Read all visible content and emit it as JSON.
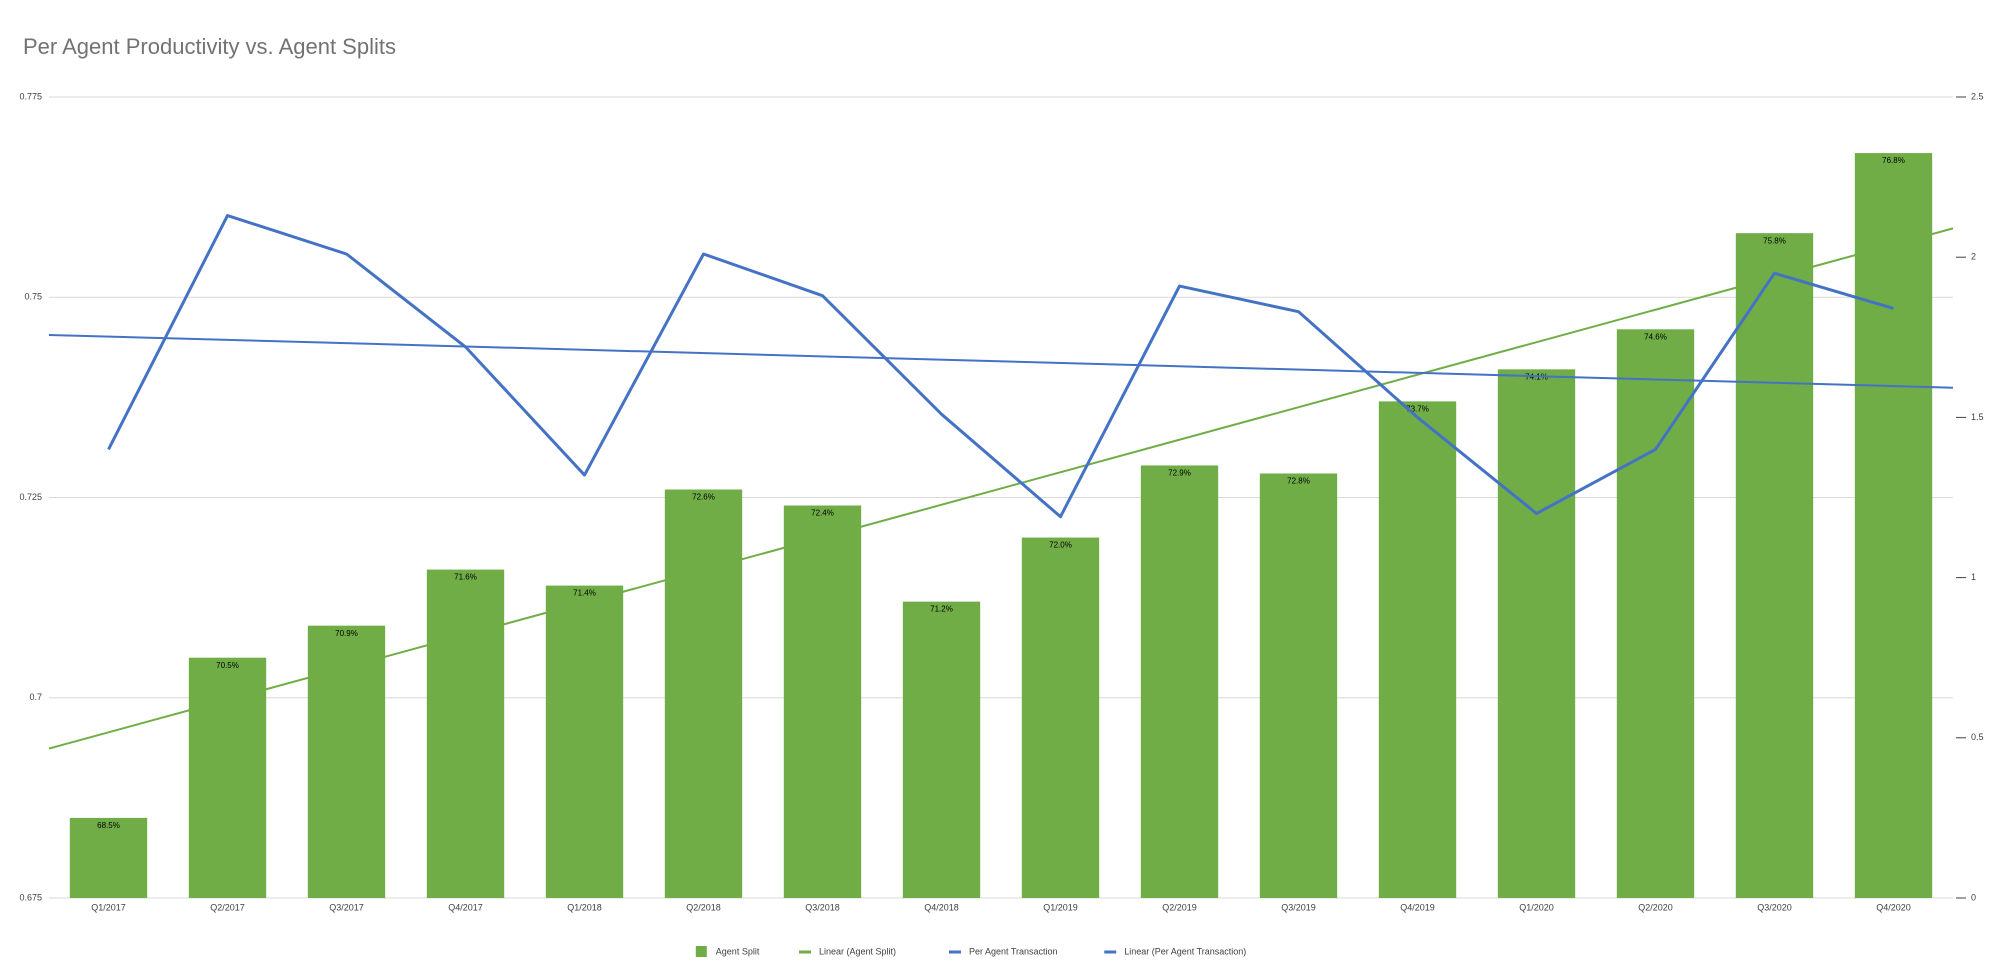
{
  "chart_data": {
    "type": "bar",
    "title": "Per Agent Productivity vs. Agent Splits",
    "categories": [
      "Q1/2017",
      "Q2/2017",
      "Q3/2017",
      "Q4/2017",
      "Q1/2018",
      "Q2/2018",
      "Q3/2018",
      "Q4/2018",
      "Q1/2019",
      "Q2/2019",
      "Q3/2019",
      "Q4/2019",
      "Q1/2020",
      "Q2/2020",
      "Q3/2020",
      "Q4/2020"
    ],
    "series": [
      {
        "name": "Agent Split",
        "type": "bar",
        "color": "#70ad47",
        "values": [
          0.685,
          0.705,
          0.709,
          0.716,
          0.714,
          0.726,
          0.724,
          0.712,
          0.72,
          0.729,
          0.728,
          0.737,
          0.741,
          0.746,
          0.758,
          0.768
        ],
        "value_labels": [
          "68.5%",
          "70.5%",
          "70.9%",
          "71.6%",
          "71.4%",
          "72.6%",
          "72.4%",
          "71.2%",
          "72.0%",
          "72.9%",
          "72.8%",
          "73.7%",
          "74.1%",
          "74.6%",
          "75.8%",
          "76.8%"
        ],
        "trendline": {
          "name": "Linear (Agent Split)"
        }
      },
      {
        "name": "Per Agent Transaction",
        "type": "line",
        "axis": "y2",
        "color": "#4472c4",
        "values": [
          1.4,
          2.13,
          2.01,
          1.72,
          1.32,
          2.01,
          1.88,
          1.51,
          1.19,
          1.91,
          1.83,
          1.5,
          1.2,
          1.4,
          1.95,
          1.84
        ],
        "trendline": {
          "name": "Linear (Per Agent Transaction)"
        }
      }
    ],
    "ylim": [
      0.675,
      0.775
    ],
    "yticks": [
      0.675,
      0.7,
      0.725,
      0.75,
      0.775
    ],
    "y2lim": [
      0,
      2.5
    ],
    "y2ticks": [
      0,
      0.5,
      1,
      1.5,
      2,
      2.5
    ],
    "grid": true,
    "legend": "bottom"
  }
}
